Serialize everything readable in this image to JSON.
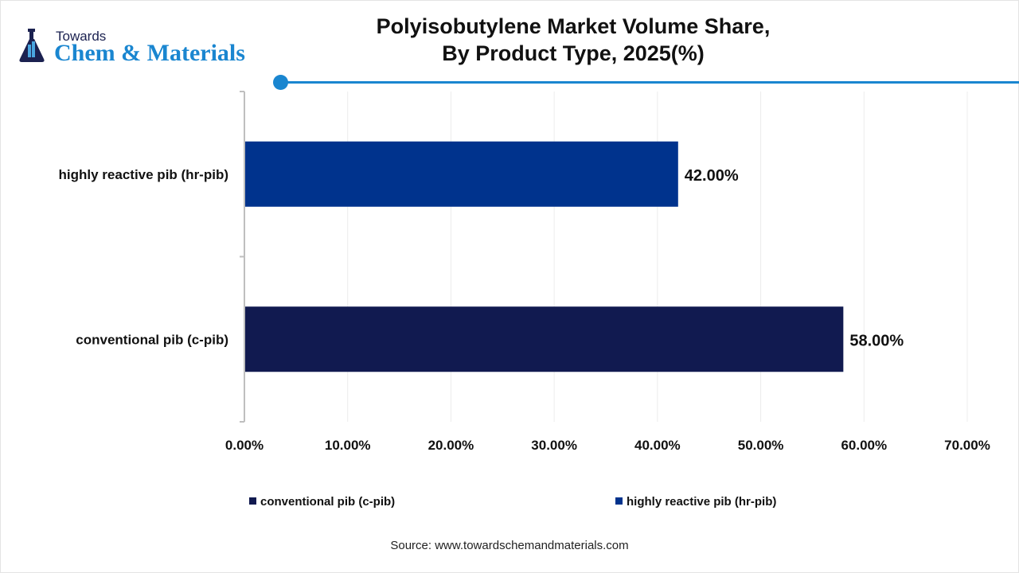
{
  "brand": {
    "line1": "Towards",
    "line2": "Chem & Materials"
  },
  "title_lines": [
    "Polyisobutylene Market Volume Share,",
    "By Product Type, 2025(%)"
  ],
  "source": "Source: www.towardschemandmaterials.com",
  "colors": {
    "accent": "#1a86d0",
    "conventional": "#111a50",
    "highly_reactive": "#00338d"
  },
  "chart_data": {
    "type": "bar",
    "orientation": "horizontal",
    "title": "Polyisobutylene Market Volume Share, By Product Type, 2025(%)",
    "categories": [
      "highly reactive pib (hr-pib)",
      "conventional pib (c-pib)"
    ],
    "series": [
      {
        "name": "conventional pib (c-pib)",
        "values": [
          null,
          58.0
        ],
        "color": "#111a50"
      },
      {
        "name": "highly reactive pib (hr-pib)",
        "values": [
          42.0,
          null
        ],
        "color": "#00338d"
      }
    ],
    "data_labels": [
      "42.00%",
      "58.00%"
    ],
    "xlim": [
      0,
      70
    ],
    "xticks": [
      "0.00%",
      "10.00%",
      "20.00%",
      "30.00%",
      "40.00%",
      "50.00%",
      "60.00%",
      "70.00%"
    ],
    "grid": "vertical",
    "legend": "bottom"
  }
}
